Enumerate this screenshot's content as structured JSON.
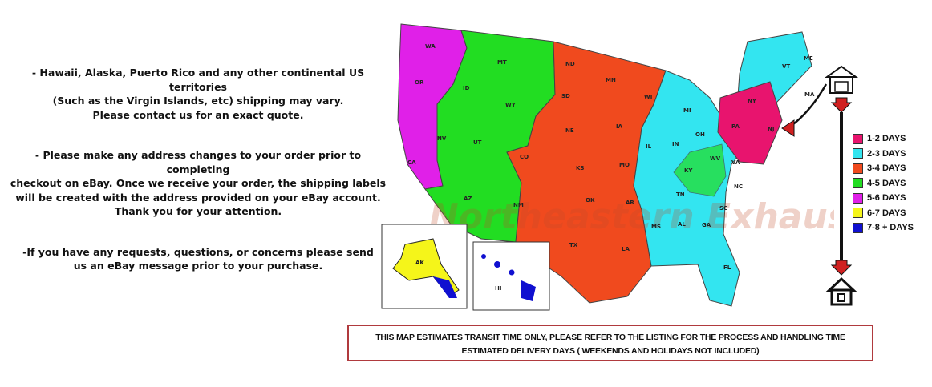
{
  "notes": [
    {
      "lines": [
        "- Hawaii, Alaska, Puerto Rico and any other continental US territories",
        "(Such as the Virgin Islands, etc) shipping may vary.",
        "Please contact us for an exact quote."
      ]
    },
    {
      "lines": [
        "- Please make any address changes to your order prior to completing",
        "checkout on eBay. Once we receive your order, the shipping labels",
        "will be created with the address provided on your eBay account.",
        "Thank you for your attention."
      ]
    },
    {
      "lines": [
        "-If you have any requests, questions, or concerns please send",
        "us an eBay message prior to your purchase."
      ]
    }
  ],
  "map": {
    "watermark": "Northeastern Exhaust",
    "states": [
      "WA",
      "OR",
      "CA",
      "ID",
      "NV",
      "MT",
      "WY",
      "UT",
      "AZ",
      "CO",
      "NM",
      "ND",
      "SD",
      "NE",
      "KS",
      "OK",
      "TX",
      "MN",
      "IA",
      "MO",
      "AR",
      "LA",
      "WI",
      "IL",
      "MI",
      "IN",
      "OH",
      "KY",
      "TN",
      "MS",
      "AL",
      "GA",
      "FL",
      "SC",
      "NC",
      "VA",
      "WV",
      "PA",
      "NY",
      "VT",
      "ME",
      "MA",
      "NJ",
      "AK",
      "HI"
    ],
    "colors": {
      "1-2": "#e8146e",
      "2-3": "#33e5f0",
      "3-4": "#f04a1e",
      "4-5": "#22dd22",
      "5-6": "#e020e8",
      "6-7": "#f5f51a",
      "7-8": "#1010d0"
    }
  },
  "legend": [
    {
      "label": "1-2 DAYS",
      "color": "#e8146e"
    },
    {
      "label": "2-3 DAYS",
      "color": "#33e5f0"
    },
    {
      "label": "3-4 DAYS",
      "color": "#f04a1e"
    },
    {
      "label": "4-5 DAYS",
      "color": "#22dd22"
    },
    {
      "label": "5-6 DAYS",
      "color": "#e020e8"
    },
    {
      "label": "6-7 DAYS",
      "color": "#f5f51a"
    },
    {
      "label": "7-8 + DAYS",
      "color": "#1010d0"
    }
  ],
  "icons": {
    "origin": "warehouse-icon",
    "destination": "house-icon",
    "arrow": "arrow-down-icon"
  },
  "notice": {
    "line1": "THIS MAP ESTIMATES TRANSIT TIME ONLY, PLEASE REFER TO THE LISTING FOR THE PROCESS AND HANDLING TIME",
    "line2": "ESTIMATED DELIVERY DAYS ( WEEKENDS AND HOLIDAYS NOT INCLUDED)"
  }
}
